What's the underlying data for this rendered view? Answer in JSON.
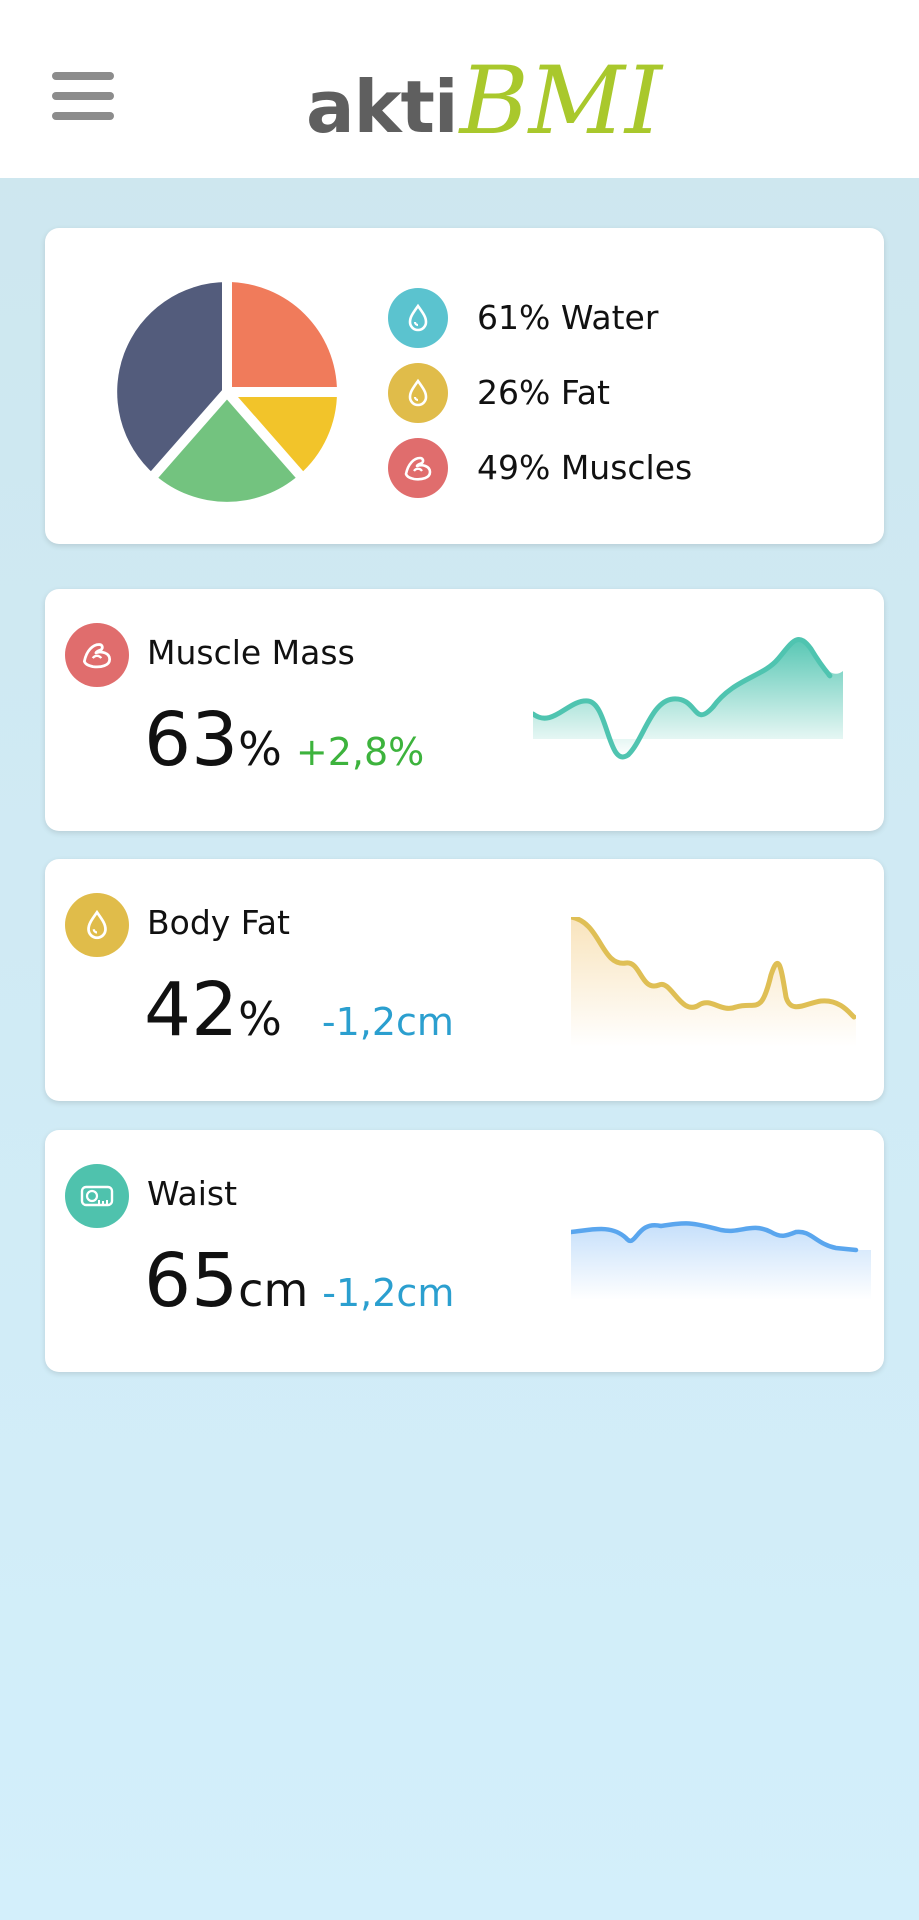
{
  "header": {
    "logo_text_1": "akti",
    "logo_text_2": "BMI",
    "menu_icon": "hamburger-menu-icon"
  },
  "composition": {
    "legend": [
      {
        "label": "61% Water",
        "icon": "water-drop-icon",
        "color": "#5bc3cf"
      },
      {
        "label": "26% Fat",
        "icon": "fat-drop-icon",
        "color": "#e0bc4a"
      },
      {
        "label": "49% Muscles",
        "icon": "muscle-icon",
        "color": "#e06d6d"
      }
    ],
    "pie_colors": {
      "orange": "#f07b5b",
      "yellow": "#f2c42a",
      "green": "#73c37f",
      "navy": "#535c7c"
    }
  },
  "metrics": [
    {
      "title": "Muscle Mass",
      "value": "63",
      "unit": "%",
      "change": "+2,8%",
      "change_color": "#3db33d",
      "icon": "muscle-icon",
      "icon_color": "#e06d6d",
      "line_color": "#4fc4b0"
    },
    {
      "title": "Body Fat",
      "value": "42",
      "unit": "%",
      "change": "-1,2cm",
      "change_color": "#2b9fcf",
      "icon": "fat-drop-icon",
      "icon_color": "#e0bc4a",
      "line_color": "#dfbf55"
    },
    {
      "title": "Waist",
      "value": "65",
      "unit": "cm",
      "change": "-1,2cm",
      "change_color": "#2b9fcf",
      "icon": "tape-measure-icon",
      "icon_color": "#4fc2ad",
      "line_color": "#5aa6ee"
    }
  ]
}
